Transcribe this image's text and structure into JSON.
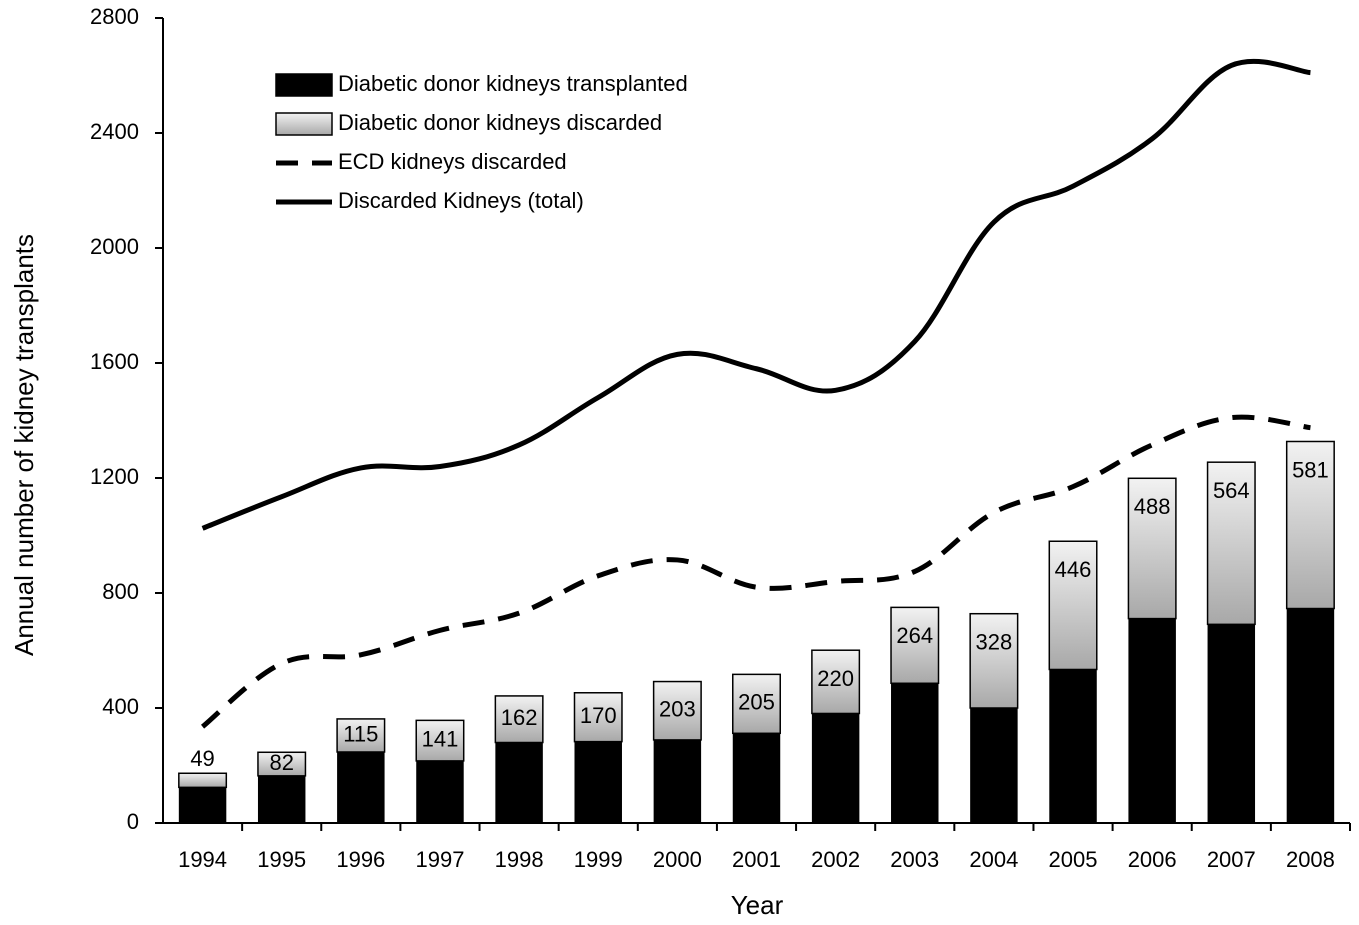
{
  "chart_data": {
    "type": "stacked-bar-line",
    "x_label": "Year",
    "y_label": "Annual number of kidney transplants",
    "categories": [
      "1994",
      "1995",
      "1996",
      "1997",
      "1998",
      "1999",
      "2000",
      "2001",
      "2002",
      "2003",
      "2004",
      "2005",
      "2006",
      "2007",
      "2008"
    ],
    "ylim": [
      0,
      2800
    ],
    "yticks": [
      0,
      400,
      800,
      1200,
      1600,
      2000,
      2400,
      2800
    ],
    "legend": "top-left",
    "series": [
      {
        "name": "Diabetic donor kidneys transplanted",
        "kind": "bar",
        "color": "#000000",
        "values": [
          124,
          164,
          247,
          216,
          280,
          283,
          289,
          312,
          381,
          486,
          400,
          534,
          711,
          691,
          746
        ]
      },
      {
        "name": "Diabetic donor kidneys discarded",
        "kind": "bar",
        "color": "#c8c8c8",
        "values": [
          49,
          82,
          115,
          141,
          162,
          170,
          203,
          205,
          220,
          264,
          328,
          446,
          488,
          564,
          581
        ]
      },
      {
        "name": "ECD kidneys discarded",
        "kind": "line",
        "style": "dashed",
        "color": "#000000",
        "values": [
          335,
          555,
          585,
          670,
          730,
          860,
          915,
          820,
          840,
          875,
          1080,
          1170,
          1315,
          1410,
          1375
        ]
      },
      {
        "name": "Discarded Kidneys (total)",
        "kind": "line",
        "style": "solid",
        "color": "#000000",
        "values": [
          1025,
          1135,
          1235,
          1240,
          1315,
          1480,
          1630,
          1580,
          1505,
          1675,
          2090,
          2215,
          2380,
          2635,
          2610
        ]
      }
    ]
  }
}
